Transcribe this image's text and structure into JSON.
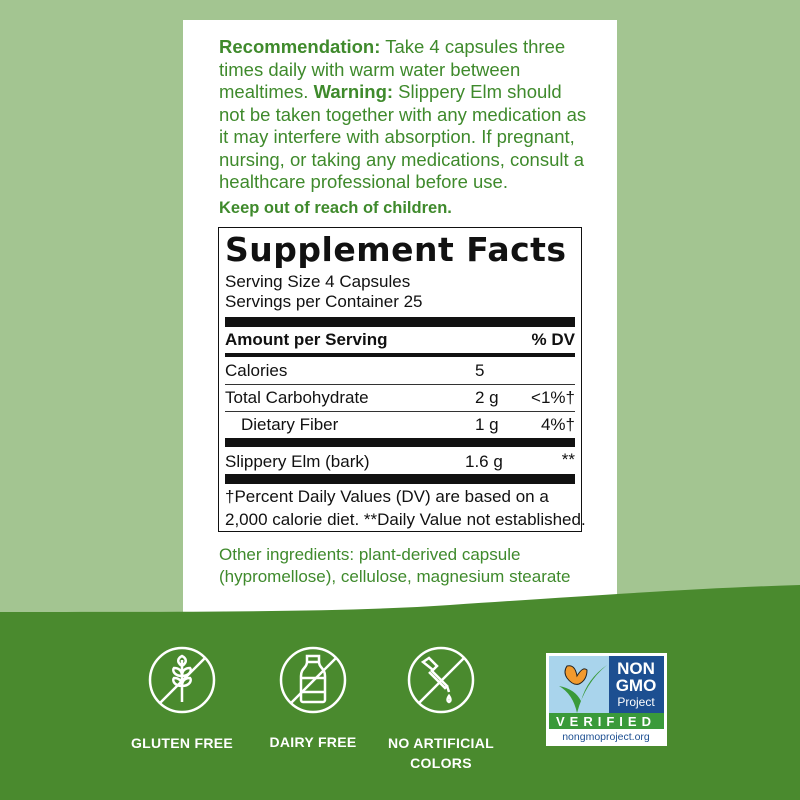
{
  "directions": {
    "recommendation_label": "Recommendation:",
    "recommendation_text": " Take 4 capsules three times daily with warm water between mealtimes. ",
    "warning_label": "Warning:",
    "warning_text": " Slippery Elm should not be taken together with any medication as it may interfere with absorption. If pregnant, nursing, or taking any medications, consult a healthcare professional before use.",
    "keep_out": "Keep out of reach of children."
  },
  "facts": {
    "title": "Supplement Facts",
    "serving_size": "Serving Size 4 Capsules",
    "servings_per_container": "Servings per Container 25",
    "amount_header": "Amount per Serving",
    "dv_header": "% DV",
    "rows": [
      {
        "name": "Calories",
        "amount": "5",
        "dv": ""
      },
      {
        "name": "Total Carbohydrate",
        "amount": "2 g",
        "dv": "<1%†"
      },
      {
        "name": "Dietary Fiber",
        "amount": "1 g",
        "dv": "4%†"
      },
      {
        "name": "Slippery Elm (bark)",
        "amount": "1.6 g",
        "dv": "**"
      }
    ],
    "footnote_1": "†Percent Daily Values (DV) are based on a",
    "footnote_2": "2,000 calorie diet. **Daily Value not established."
  },
  "other_ingredients": "Other ingredients: plant-derived capsule (hypromellose), cellulose, magnesium stearate",
  "badges": [
    {
      "label": "GLUTEN FREE",
      "icon": "no-wheat-icon"
    },
    {
      "label": "DAIRY FREE",
      "icon": "no-milk-bottle-icon"
    },
    {
      "label": "NO ARTIFICIAL COLORS",
      "icon": "no-dropper-icon"
    }
  ],
  "non_gmo": {
    "line1": "NON",
    "line2": "GMO",
    "line3": "Project",
    "verified": "VERIFIED",
    "url": "nongmoproject.org"
  },
  "colors": {
    "light_green": "#a3c591",
    "dark_green": "#4a8a2e",
    "text_green": "#3f8a2c"
  }
}
